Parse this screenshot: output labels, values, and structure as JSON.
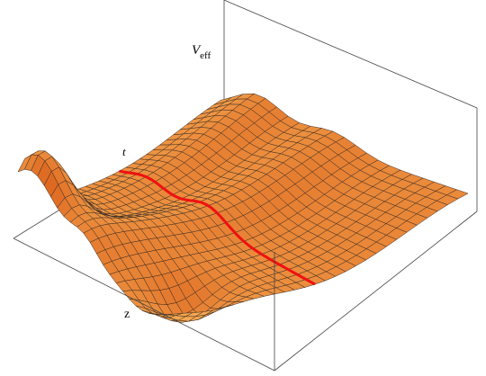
{
  "chart_data": {
    "type": "surface",
    "axis_labels": {
      "z": "z",
      "t": "t",
      "v": {
        "base": "V",
        "subscript": "eff"
      }
    }
  }
}
